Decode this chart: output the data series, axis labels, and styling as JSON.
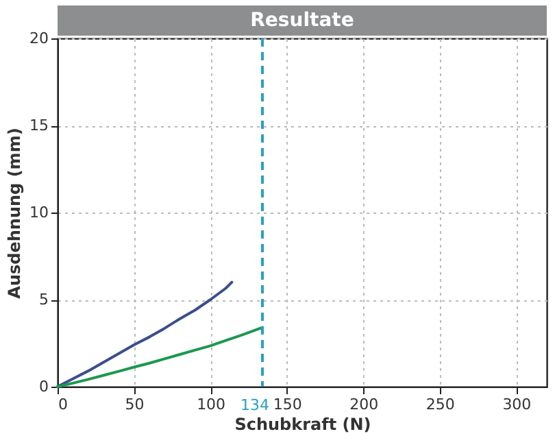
{
  "chart_data": {
    "type": "line",
    "title": "Resultate",
    "xlabel": "Schubkraft (N)",
    "ylabel": "Ausdehnung (mm)",
    "xlim": [
      0,
      320
    ],
    "ylim": [
      0,
      20
    ],
    "grid": true,
    "xticks": [
      0,
      50,
      100,
      150,
      200,
      250,
      300
    ],
    "yticks": [
      0,
      5,
      10,
      15,
      20
    ],
    "ref_lines": [
      {
        "axis": "x",
        "value": 134,
        "label": "134",
        "color": "#2a9fc4",
        "line_style": "dashed"
      }
    ],
    "series": [
      {
        "color": "#3b4e8e",
        "x": [
          0,
          10,
          20,
          30,
          40,
          50,
          60,
          70,
          80,
          90,
          100,
          110,
          114
        ],
        "values": [
          0,
          0.45,
          0.9,
          1.4,
          1.9,
          2.4,
          2.85,
          3.35,
          3.9,
          4.4,
          5.0,
          5.65,
          6.0
        ]
      },
      {
        "color": "#1c9850",
        "x": [
          0,
          10,
          20,
          30,
          40,
          50,
          60,
          70,
          80,
          90,
          100,
          110,
          120,
          134
        ],
        "values": [
          0,
          0.2,
          0.42,
          0.65,
          0.88,
          1.12,
          1.35,
          1.6,
          1.85,
          2.1,
          2.35,
          2.65,
          2.95,
          3.4
        ]
      }
    ]
  }
}
